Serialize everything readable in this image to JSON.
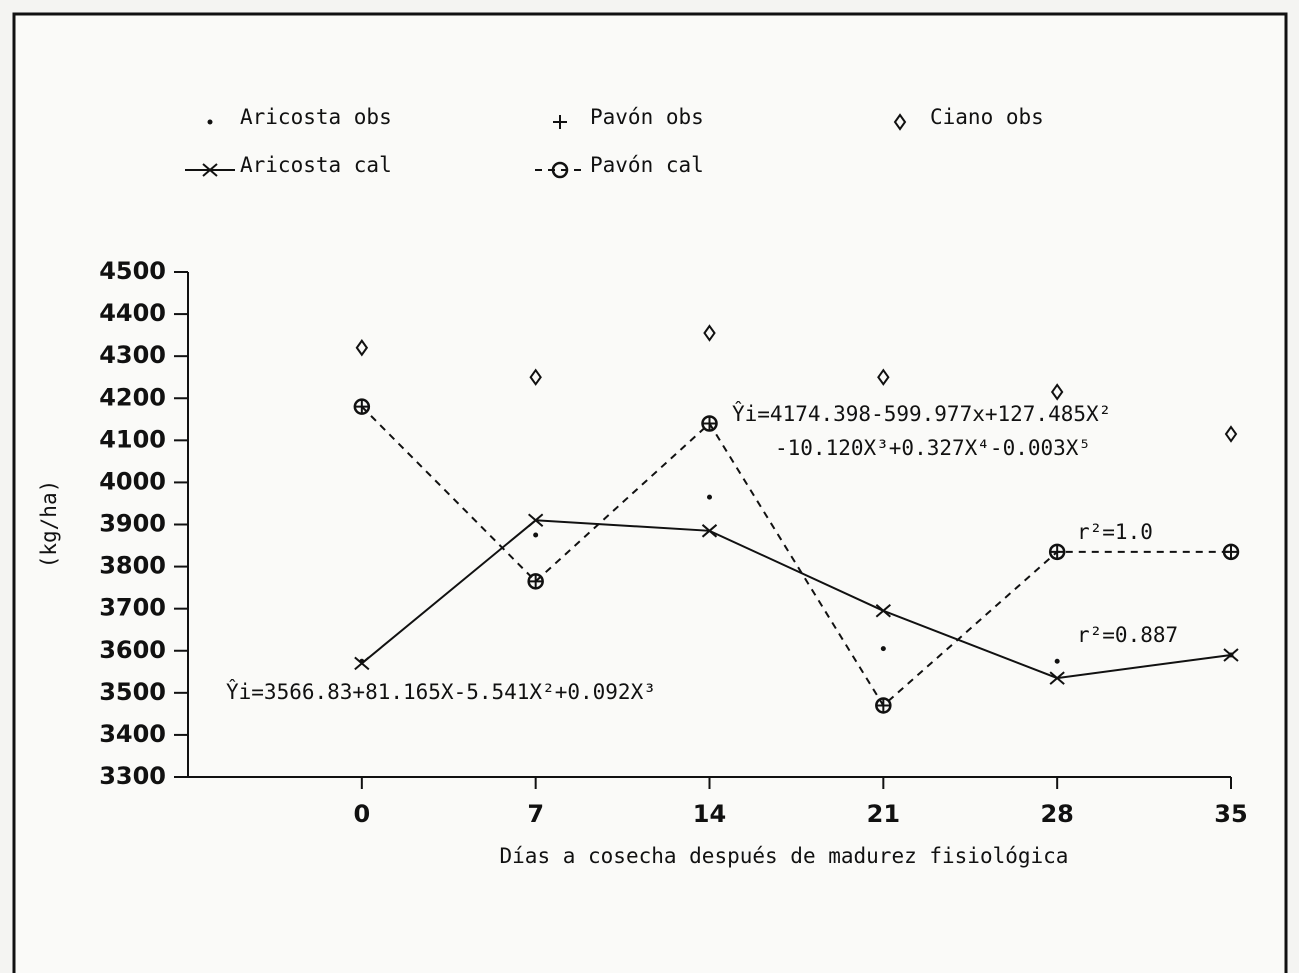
{
  "chart_data": {
    "type": "line",
    "x": [
      0,
      7,
      14,
      21,
      28,
      35
    ],
    "xlim": [
      -7,
      35
    ],
    "xticks": [
      0,
      7,
      14,
      21,
      28,
      35
    ],
    "ylim": [
      3300,
      4500
    ],
    "yticks": [
      3300,
      3400,
      3500,
      3600,
      3700,
      3800,
      3900,
      4000,
      4100,
      4200,
      4300,
      4400,
      4500
    ],
    "xlabel": "Días a cosecha después de madurez fisiológica",
    "ylabel": "(kg/ha)",
    "series": [
      {
        "name": "Aricosta obs",
        "color": "#111111",
        "marker": "dot",
        "line": "none",
        "values": [
          3575,
          3875,
          3965,
          3605,
          3575,
          3590
        ]
      },
      {
        "name": "Pavón obs",
        "color": "#111111",
        "marker": "plus",
        "line": "none",
        "values": [
          4180,
          3765,
          4140,
          3470,
          3835,
          3835
        ]
      },
      {
        "name": "Ciano obs",
        "color": "#111111",
        "marker": "diamond",
        "line": "none",
        "values": [
          4320,
          4250,
          4355,
          4250,
          4215,
          4115
        ]
      },
      {
        "name": "Aricosta cal",
        "color": "#111111",
        "marker": "x",
        "line": "solid",
        "values": [
          3570,
          3910,
          3885,
          3695,
          3535,
          3590
        ]
      },
      {
        "name": "Pavón cal",
        "color": "#111111",
        "marker": "circle",
        "line": "dashed",
        "values": [
          4180,
          3765,
          4140,
          3470,
          3835,
          3835
        ]
      }
    ],
    "annotations": [
      "Ŷi=3566.83+81.165X-5.541X²+0.092X³",
      "Ŷi=4174.398-599.977x+127.485X²",
      "-10.120X³+0.327X⁴-0.003X⁵",
      "r²=1.0",
      "r²=0.887"
    ]
  }
}
